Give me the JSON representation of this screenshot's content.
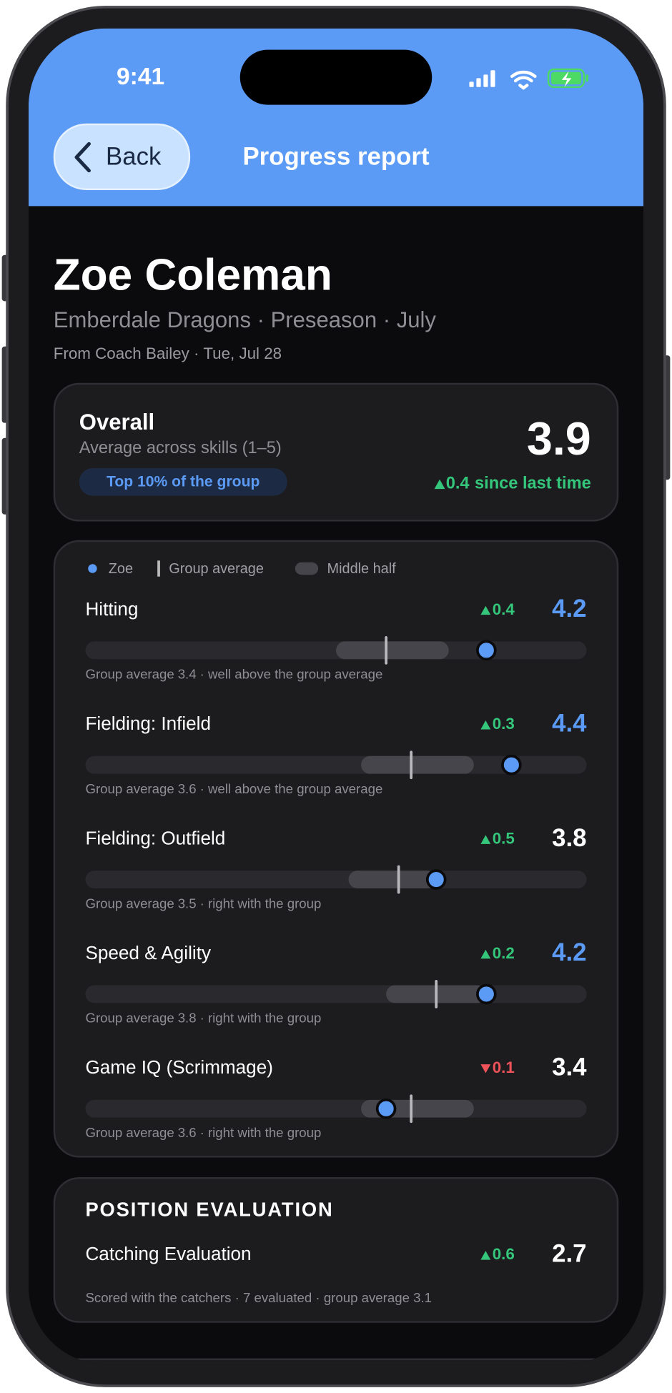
{
  "status_bar": {
    "time": "9:41"
  },
  "header": {
    "back": "Back",
    "title": "Progress report"
  },
  "player": {
    "name": "Zoe Coleman",
    "subtitle": "Emberdale Dragons · Preseason · July",
    "byline": "From Coach Bailey · Tue, Jul 28"
  },
  "overall": {
    "title": "Overall",
    "caption": "Average across skills (1–5)",
    "badge": "Top 10% of the group",
    "score": 3.9,
    "change": 0.4,
    "direction": "up",
    "change_text": "since last time"
  },
  "skills": {
    "legend": [
      "Zoe",
      "Group average",
      "Middle half"
    ],
    "xlim": [
      1,
      5
    ],
    "items": [
      {
        "name": "Hitting",
        "change": 0.4,
        "direction": "up",
        "score": 4.2,
        "score_color": "#5b9bf5",
        "middle_half": [
          3.0,
          3.9
        ],
        "group_average": 3.4,
        "note_prefix": "Group average",
        "note": "· well above the group average"
      },
      {
        "name": "Fielding: Infield",
        "change": 0.3,
        "direction": "up",
        "score": 4.4,
        "score_color": "#5b9bf5",
        "middle_half": [
          3.2,
          4.1
        ],
        "group_average": 3.6,
        "note_prefix": "Group average",
        "note": "· well above the group average"
      },
      {
        "name": "Fielding: Outfield",
        "change": 0.5,
        "direction": "up",
        "score": 3.8,
        "score_color": "#ffffff",
        "middle_half": [
          3.1,
          3.8
        ],
        "group_average": 3.5,
        "note_prefix": "Group average",
        "note": "· right with the group"
      },
      {
        "name": "Speed & Agility",
        "change": 0.2,
        "direction": "up",
        "score": 4.2,
        "score_color": "#5b9bf5",
        "middle_half": [
          3.4,
          4.2
        ],
        "group_average": 3.8,
        "note_prefix": "Group average",
        "note": "· right with the group"
      },
      {
        "name": "Game IQ (Scrimmage)",
        "change": 0.1,
        "direction": "down",
        "score": 3.4,
        "score_color": "#ffffff",
        "middle_half": [
          3.2,
          4.1
        ],
        "group_average": 3.6,
        "note_prefix": "Group average",
        "note": "· right with the group"
      }
    ]
  },
  "position_evaluation": {
    "title": "POSITION EVALUATION",
    "name": "Catching Evaluation",
    "change": 0.6,
    "direction": "up",
    "score": 2.7,
    "note": "Scored with the catchers · 7 evaluated · group average 3.1"
  }
}
